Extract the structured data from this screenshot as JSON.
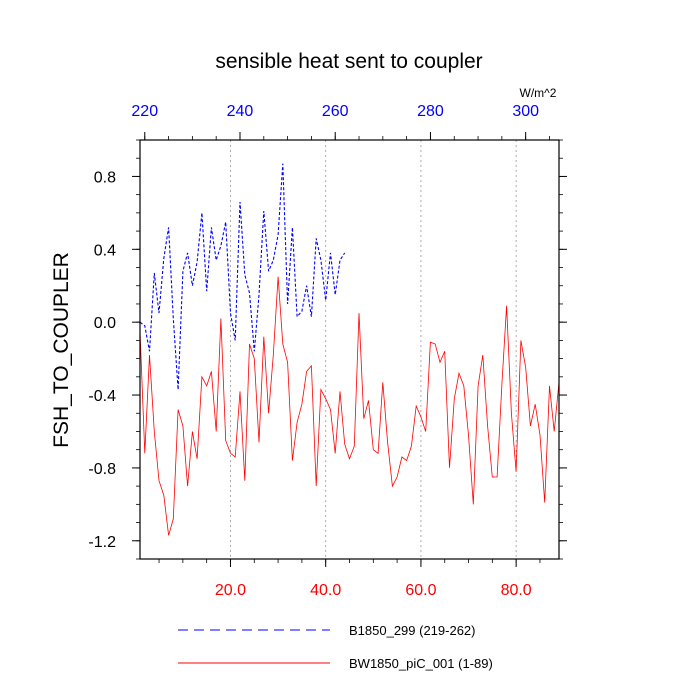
{
  "chart_data": {
    "type": "line",
    "title": "sensible heat sent to coupler",
    "ylabel": "FSH_TO_COUPLER",
    "top_axis_unit": "W/m^2",
    "ylim": [
      -1.3,
      1.0
    ],
    "yticks": [
      "0.8",
      "0.4",
      "0.0",
      "-0.4",
      "-0.8",
      "-1.2"
    ],
    "ytick_values": [
      0.8,
      0.4,
      0.0,
      -0.4,
      -0.8,
      -1.2
    ],
    "x_bottom": {
      "range": [
        1,
        89
      ],
      "tick_values": [
        20,
        40,
        60,
        80
      ],
      "tick_labels": [
        "20.0",
        "40.0",
        "60.0",
        "80.0"
      ],
      "color": "#ff0000"
    },
    "x_top": {
      "range": [
        219,
        307
      ],
      "tick_values": [
        220,
        240,
        260,
        280,
        300
      ],
      "tick_labels": [
        "220",
        "240",
        "260",
        "280",
        "300"
      ],
      "color": "#0000ff"
    },
    "grid_x_dotted": [
      20,
      40,
      60,
      80
    ],
    "series": [
      {
        "name": "B1850_299 (219-262)",
        "axis": "top",
        "color": "#0000ff",
        "style": "dashed",
        "x": [
          219,
          220,
          221,
          222,
          223,
          224,
          225,
          226,
          227,
          228,
          229,
          230,
          231,
          232,
          233,
          234,
          235,
          236,
          237,
          238,
          239,
          240,
          241,
          242,
          243,
          244,
          245,
          246,
          247,
          248,
          249,
          250,
          251,
          252,
          253,
          254,
          255,
          256,
          257,
          258,
          259,
          260,
          261,
          262
        ],
        "values": [
          0.0,
          -0.02,
          -0.16,
          0.27,
          0.05,
          0.35,
          0.52,
          0.02,
          -0.37,
          0.28,
          0.38,
          0.2,
          0.33,
          0.6,
          0.17,
          0.52,
          0.34,
          0.42,
          0.55,
          0.05,
          -0.1,
          0.66,
          0.26,
          0.16,
          -0.16,
          0.15,
          0.61,
          0.28,
          0.34,
          0.48,
          0.87,
          0.1,
          0.52,
          0.03,
          0.06,
          0.2,
          0.03,
          0.46,
          0.34,
          0.12,
          0.38,
          0.15,
          0.34,
          0.38
        ]
      },
      {
        "name": "BW1850_piC_001 (1-89)",
        "axis": "bottom",
        "color": "#ff0000",
        "style": "solid",
        "x": [
          1,
          2,
          3,
          4,
          5,
          6,
          7,
          8,
          9,
          10,
          11,
          12,
          13,
          14,
          15,
          16,
          17,
          18,
          19,
          20,
          21,
          22,
          23,
          24,
          25,
          26,
          27,
          28,
          29,
          30,
          31,
          32,
          33,
          34,
          35,
          36,
          37,
          38,
          39,
          40,
          41,
          42,
          43,
          44,
          45,
          46,
          47,
          48,
          49,
          50,
          51,
          52,
          53,
          54,
          55,
          56,
          57,
          58,
          59,
          60,
          61,
          62,
          63,
          64,
          65,
          66,
          67,
          68,
          69,
          70,
          71,
          72,
          73,
          74,
          75,
          76,
          77,
          78,
          79,
          80,
          81,
          82,
          83,
          84,
          85,
          86,
          87,
          88,
          89
        ],
        "values": [
          -0.05,
          -0.72,
          -0.18,
          -0.6,
          -0.87,
          -0.95,
          -1.17,
          -1.08,
          -0.48,
          -0.57,
          -0.9,
          -0.6,
          -0.75,
          -0.3,
          -0.35,
          -0.27,
          -0.6,
          0.02,
          -0.65,
          -0.72,
          -0.74,
          -0.38,
          -0.87,
          -0.12,
          -0.2,
          -0.66,
          -0.08,
          -0.5,
          -0.18,
          0.25,
          -0.12,
          -0.22,
          -0.76,
          -0.55,
          -0.45,
          -0.27,
          -0.24,
          -0.9,
          -0.37,
          -0.42,
          -0.48,
          -0.72,
          -0.38,
          -0.67,
          -0.75,
          -0.68,
          0.05,
          -0.53,
          -0.43,
          -0.7,
          -0.72,
          -0.33,
          -0.66,
          -0.9,
          -0.85,
          -0.74,
          -0.76,
          -0.68,
          -0.46,
          -0.52,
          -0.6,
          -0.11,
          -0.12,
          -0.22,
          -0.16,
          -0.8,
          -0.42,
          -0.28,
          -0.35,
          -0.62,
          -1.0,
          -0.35,
          -0.18,
          -0.57,
          -0.85,
          -0.85,
          -0.34,
          0.09,
          -0.5,
          -0.82,
          -0.1,
          -0.25,
          -0.57,
          -0.45,
          -0.62,
          -0.99,
          -0.35,
          -0.6,
          -0.33
        ]
      }
    ],
    "legend_placement": "bottom"
  }
}
